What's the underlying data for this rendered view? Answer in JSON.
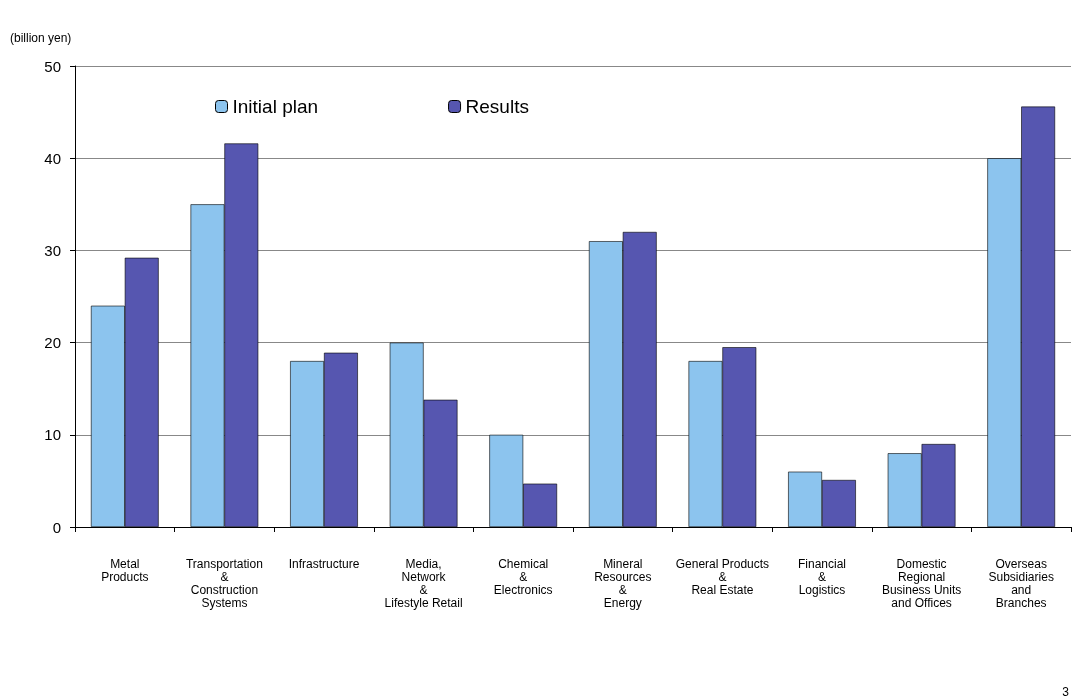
{
  "chart_data": {
    "type": "bar",
    "ylabel": "(billion yen)",
    "categories": [
      "Metal\nProducts",
      "Transportation\n&\nConstruction\nSystems",
      "Infrastructure",
      "Media,\nNetwork\n&\nLifestyle Retail",
      "Chemical\n&\nElectronics",
      "Mineral\nResources\n&\nEnergy",
      "General Products\n&\nReal Estate",
      "Financial\n&\nLogistics",
      "Domestic\nRegional\nBusiness Units\nand Offices",
      "Overseas\nSubsidiaries\nand\nBranches"
    ],
    "series": [
      {
        "name": "Initial plan",
        "color": "#8cc4ee",
        "values": [
          24,
          35,
          18,
          20,
          10,
          31,
          18,
          6,
          8,
          40
        ]
      },
      {
        "name": "Results",
        "color": "#5656b0",
        "values": [
          29.2,
          41.6,
          18.9,
          13.8,
          4.7,
          32,
          19.5,
          5.1,
          9,
          45.6
        ]
      }
    ],
    "ylim": [
      0,
      50
    ],
    "yticks": [
      0,
      10,
      20,
      30,
      40,
      50
    ],
    "grid": "y",
    "legend": "top left",
    "annotations": [
      "3"
    ]
  }
}
